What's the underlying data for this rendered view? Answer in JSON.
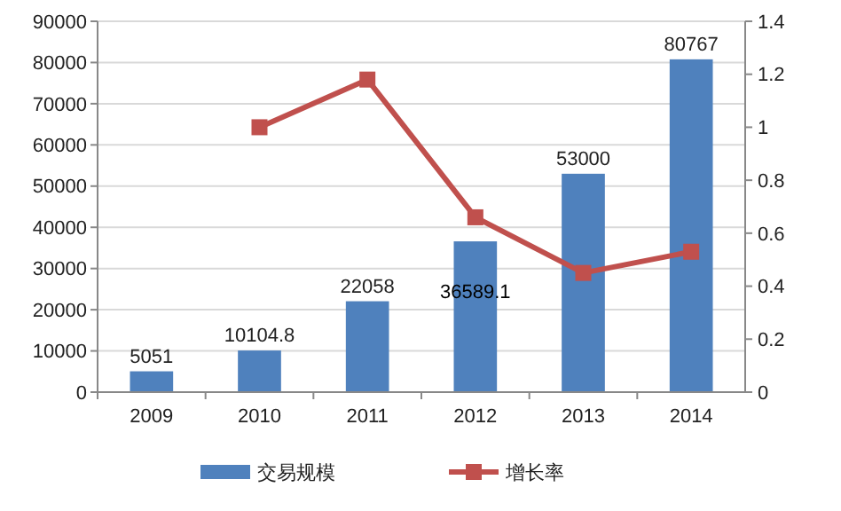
{
  "chart_data": {
    "type": "bar",
    "categories": [
      "2009",
      "2010",
      "2011",
      "2012",
      "2013",
      "2014"
    ],
    "series": [
      {
        "name": "交易规模",
        "color": "#4f81bd",
        "values": [
          5051,
          10104.8,
          22058,
          36589.1,
          53000,
          80767
        ],
        "value_labels": [
          "5051",
          "10104.8",
          "22058",
          "36589.1",
          "53000",
          "80767"
        ]
      },
      {
        "name": "增长率",
        "type": "line",
        "axis": "y2",
        "color": "#c0504d",
        "values": [
          null,
          1.0,
          1.18,
          0.66,
          0.45,
          0.53
        ],
        "marker": "square"
      }
    ],
    "ylim": [
      0,
      90000
    ],
    "yticks": [
      0,
      10000,
      20000,
      30000,
      40000,
      50000,
      60000,
      70000,
      80000,
      90000
    ],
    "y2lim": [
      0,
      1.4
    ],
    "y2ticks": [
      0,
      0.2,
      0.4,
      0.6,
      0.8,
      1,
      1.2,
      1.4
    ],
    "grid": "y",
    "legend": "bottom"
  }
}
